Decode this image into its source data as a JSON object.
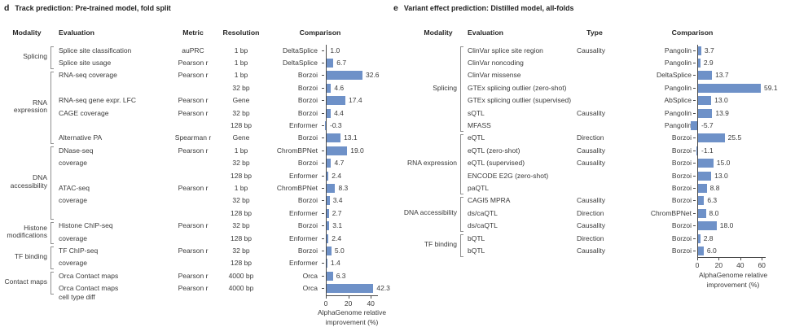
{
  "bar_color": "#6E91C8",
  "axis_color": "#4a4a4a",
  "text_color": "#3a3a3a",
  "bracket_color": "#8f8f8f",
  "chart_data": [
    {
      "type": "bar",
      "panel": "d",
      "title": "Track prediction: Pre-trained model, fold split",
      "orientation": "horizontal",
      "xlabel_line1": "AlphaGenome relative",
      "xlabel_line2": "improvement (%)",
      "xticks": [
        0,
        20,
        40
      ],
      "xlim": [
        -1,
        47
      ],
      "legend": "none",
      "grid": false,
      "column_headers": [
        "Modality",
        "Evaluation",
        "Metric",
        "Resolution",
        "Comparison"
      ],
      "groups": [
        {
          "label": "Splicing",
          "start": 0,
          "end": 1
        },
        {
          "label": "RNA expression",
          "start": 2,
          "end": 7
        },
        {
          "label": "DNA accessibility",
          "start": 8,
          "end": 13
        },
        {
          "label": "Histone modifications",
          "start": 14,
          "end": 15
        },
        {
          "label": "TF binding",
          "start": 16,
          "end": 17
        },
        {
          "label": "Contact maps",
          "start": 18,
          "end": 19
        }
      ],
      "rows": [
        {
          "evaluation": "Splice site classification",
          "metric": "auPRC",
          "resolution": "1 bp",
          "comparison": "DeltaSplice",
          "value": 1.0
        },
        {
          "evaluation": "Splice site usage",
          "metric": "Pearson r",
          "resolution": "1 bp",
          "comparison": "DeltaSplice",
          "value": 6.7
        },
        {
          "evaluation": "RNA-seq coverage",
          "metric": "Pearson r",
          "resolution": "1 bp",
          "comparison": "Borzoi",
          "value": 32.6
        },
        {
          "evaluation": "",
          "metric": "",
          "resolution": "32 bp",
          "comparison": "Borzoi",
          "value": 4.6
        },
        {
          "evaluation": "RNA-seq gene expr. LFC",
          "metric": "Pearson r",
          "resolution": "Gene",
          "comparison": "Borzoi",
          "value": 17.4
        },
        {
          "evaluation": "CAGE coverage",
          "metric": "Pearson r",
          "resolution": "32 bp",
          "comparison": "Borzoi",
          "value": 4.4
        },
        {
          "evaluation": "",
          "metric": "",
          "resolution": "128 bp",
          "comparison": "Enformer",
          "value": -0.3
        },
        {
          "evaluation": "Alternative PA",
          "metric": "Spearman r",
          "resolution": "Gene",
          "comparison": "Borzoi",
          "value": 13.1
        },
        {
          "evaluation": "DNase-seq",
          "metric": "Pearson r",
          "resolution": "1 bp",
          "comparison": "ChromBPNet",
          "value": 19.0
        },
        {
          "evaluation": "coverage",
          "metric": "",
          "resolution": "32 bp",
          "comparison": "Borzoi",
          "value": 4.7
        },
        {
          "evaluation": "",
          "metric": "",
          "resolution": "128 bp",
          "comparison": "Enformer",
          "value": 2.4
        },
        {
          "evaluation": "ATAC-seq",
          "metric": "Pearson r",
          "resolution": "1 bp",
          "comparison": "ChromBPNet",
          "value": 8.3
        },
        {
          "evaluation": "coverage",
          "metric": "",
          "resolution": "32 bp",
          "comparison": "Borzoi",
          "value": 3.4
        },
        {
          "evaluation": "",
          "metric": "",
          "resolution": "128 bp",
          "comparison": "Enformer",
          "value": 2.7
        },
        {
          "evaluation": "Histone ChIP-seq",
          "metric": "Pearson r",
          "resolution": "32 bp",
          "comparison": "Borzoi",
          "value": 3.1
        },
        {
          "evaluation": "coverage",
          "metric": "",
          "resolution": "128 bp",
          "comparison": "Enformer",
          "value": 2.4
        },
        {
          "evaluation": "TF ChIP-seq",
          "metric": "Pearson r",
          "resolution": "32 bp",
          "comparison": "Borzoi",
          "value": 5.0
        },
        {
          "evaluation": "coverage",
          "metric": "",
          "resolution": "128 bp",
          "comparison": "Enformer",
          "value": 1.4
        },
        {
          "evaluation": "Orca Contact maps",
          "metric": "Pearson r",
          "resolution": "4000 bp",
          "comparison": "Orca",
          "value": 6.3
        },
        {
          "evaluation": "Orca Contact maps\ncell type diff",
          "metric": "Pearson r",
          "resolution": "4000 bp",
          "comparison": "Orca",
          "value": 42.3
        }
      ]
    },
    {
      "type": "bar",
      "panel": "e",
      "title": "Variant effect prediction: Distilled model, all-folds",
      "orientation": "horizontal",
      "xlabel_line1": "AlphaGenome relative",
      "xlabel_line2": "improvement (%)",
      "xticks": [
        0,
        20,
        40,
        60
      ],
      "xlim": [
        -8,
        64
      ],
      "legend": "none",
      "grid": false,
      "column_headers": [
        "Modality",
        "Evaluation",
        "Type",
        "Comparison"
      ],
      "groups": [
        {
          "label": "Splicing",
          "start": 0,
          "end": 6
        },
        {
          "label": "RNA expression",
          "start": 7,
          "end": 11
        },
        {
          "label": "DNA accessibility",
          "start": 12,
          "end": 14
        },
        {
          "label": "TF binding",
          "start": 15,
          "end": 16
        }
      ],
      "rows": [
        {
          "evaluation": "ClinVar splice site region",
          "vtype": "Causality",
          "comparison": "Pangolin",
          "value": 3.7
        },
        {
          "evaluation": "ClinVar noncoding",
          "vtype": "",
          "comparison": "Pangolin",
          "value": 2.9
        },
        {
          "evaluation": "ClinVar missense",
          "vtype": "",
          "comparison": "DeltaSplice",
          "value": 13.7
        },
        {
          "evaluation": "GTEx splicing outlier (zero-shot)",
          "vtype": "",
          "comparison": "Pangolin",
          "value": 59.1
        },
        {
          "evaluation": "GTEx splicing outlier (supervised)",
          "vtype": "",
          "comparison": "AbSplice",
          "value": 13.0
        },
        {
          "evaluation": "sQTL",
          "vtype": "Causality",
          "comparison": "Pangolin",
          "value": 13.9
        },
        {
          "evaluation": "MFASS",
          "vtype": "",
          "comparison": "Pangolin",
          "value": -5.7
        },
        {
          "evaluation": "eQTL",
          "vtype": "Direction",
          "comparison": "Borzoi",
          "value": 25.5
        },
        {
          "evaluation": "eQTL (zero-shot)",
          "vtype": "Causality",
          "comparison": "Borzoi",
          "value": -1.1
        },
        {
          "evaluation": "eQTL (supervised)",
          "vtype": "Causality",
          "comparison": "Borzoi",
          "value": 15.0
        },
        {
          "evaluation": "ENCODE E2G (zero-shot)",
          "vtype": "",
          "comparison": "Borzoi",
          "value": 13.0
        },
        {
          "evaluation": "paQTL",
          "vtype": "",
          "comparison": "Borzoi",
          "value": 8.8
        },
        {
          "evaluation": "CAGI5 MPRA",
          "vtype": "Causality",
          "comparison": "Borzoi",
          "value": 6.3
        },
        {
          "evaluation": "ds/caQTL",
          "vtype": "Direction",
          "comparison": "ChromBPNet",
          "value": 8.0
        },
        {
          "evaluation": "ds/caQTL",
          "vtype": "Causality",
          "comparison": "Borzoi",
          "value": 18.0
        },
        {
          "evaluation": "bQTL",
          "vtype": "Direction",
          "comparison": "Borzoi",
          "value": 2.8
        },
        {
          "evaluation": "bQTL",
          "vtype": "Causality",
          "comparison": "Borzoi",
          "value": 6.0
        }
      ]
    }
  ]
}
